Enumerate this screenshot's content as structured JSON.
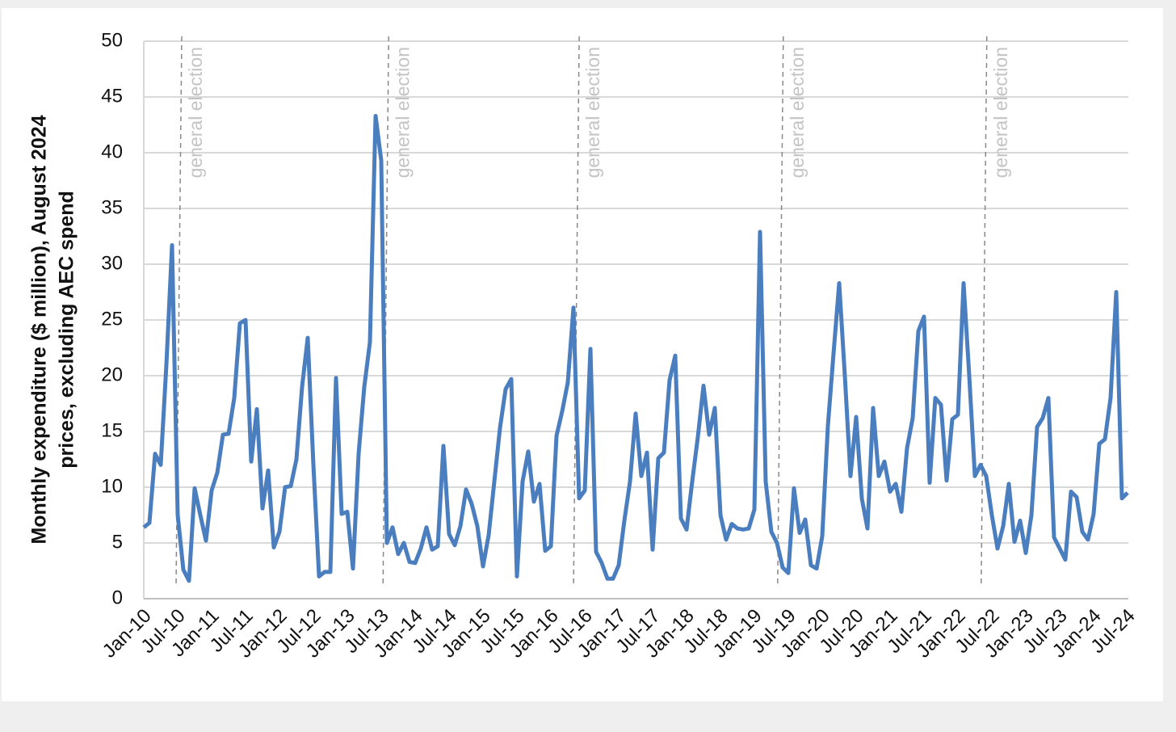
{
  "chart_data": {
    "type": "line",
    "ylabel": [
      "Monthly expenditure ($ million),  August 2024",
      "prices, excluding AEC spend"
    ],
    "categories": [
      "Jan-10",
      null,
      null,
      null,
      null,
      null,
      "Jul-10",
      null,
      null,
      null,
      null,
      null,
      "Jan-11",
      null,
      null,
      null,
      null,
      null,
      "Jul-11",
      null,
      null,
      null,
      null,
      null,
      "Jan-12",
      null,
      null,
      null,
      null,
      null,
      "Jul-12",
      null,
      null,
      null,
      null,
      null,
      "Jan-13",
      null,
      null,
      null,
      null,
      null,
      "Jul-13",
      null,
      null,
      null,
      null,
      null,
      "Jan-14",
      null,
      null,
      null,
      null,
      null,
      "Jul-14",
      null,
      null,
      null,
      null,
      null,
      "Jan-15",
      null,
      null,
      null,
      null,
      null,
      "Jul-15",
      null,
      null,
      null,
      null,
      null,
      "Jan-16",
      null,
      null,
      null,
      null,
      null,
      "Jul-16",
      null,
      null,
      null,
      null,
      null,
      "Jan-17",
      null,
      null,
      null,
      null,
      null,
      "Jul-17",
      null,
      null,
      null,
      null,
      null,
      "Jan-18",
      null,
      null,
      null,
      null,
      null,
      "Jul-18",
      null,
      null,
      null,
      null,
      null,
      "Jan-19",
      null,
      null,
      null,
      null,
      null,
      "Jul-19",
      null,
      null,
      null,
      null,
      null,
      "Jan-20",
      null,
      null,
      null,
      null,
      null,
      "Jul-20",
      null,
      null,
      null,
      null,
      null,
      "Jan-21",
      null,
      null,
      null,
      null,
      null,
      "Jul-21",
      null,
      null,
      null,
      null,
      null,
      "Jan-22",
      null,
      null,
      null,
      null,
      null,
      "Jul-22",
      null,
      null,
      null,
      null,
      null,
      "Jan-23",
      null,
      null,
      null,
      null,
      null,
      "Jul-23",
      null,
      null,
      null,
      null,
      null,
      "Jan-24",
      null,
      null,
      null,
      null,
      null,
      "Jul-24"
    ],
    "values": [
      6.4,
      6.8,
      13,
      12,
      21,
      31.7,
      7.5,
      2.6,
      1.6,
      9.9,
      7.5,
      5.2,
      9.7,
      11.3,
      14.7,
      14.8,
      18,
      24.7,
      25,
      12.3,
      17,
      8.1,
      11.5,
      4.6,
      6,
      10,
      10.1,
      12.5,
      19,
      23.4,
      12,
      2,
      2.4,
      2.4,
      19.8,
      7.6,
      7.8,
      2.7,
      13,
      19,
      23,
      43.3,
      39.3,
      5,
      6.4,
      4,
      5,
      3.3,
      3.2,
      4.5,
      6.4,
      4.4,
      4.7,
      13.7,
      5.8,
      4.8,
      6.5,
      9.8,
      8.5,
      6.5,
      2.9,
      5.7,
      10.5,
      15.3,
      18.8,
      19.7,
      2,
      10.5,
      13.2,
      8.7,
      10.3,
      4.3,
      4.7,
      14.6,
      16.8,
      19.4,
      26.1,
      9,
      9.7,
      22.4,
      4.2,
      3.2,
      1.8,
      1.8,
      3,
      7,
      10.5,
      16.6,
      11,
      13.1,
      4.4,
      12.6,
      13.1,
      19.6,
      21.8,
      7.2,
      6.2,
      10.5,
      14.5,
      19.1,
      14.7,
      17.1,
      7.5,
      5.3,
      6.7,
      6.3,
      6.2,
      6.3,
      8,
      32.9,
      10.5,
      6,
      5,
      2.8,
      2.3,
      9.9,
      5.9,
      7.1,
      3,
      2.7,
      5.6,
      15.5,
      22,
      28.3,
      20,
      11,
      16.3,
      9,
      6.3,
      17.1,
      11,
      12.3,
      9.6,
      10.3,
      7.8,
      13.5,
      16.2,
      24,
      25.3,
      10.4,
      18,
      17.4,
      10.6,
      16.1,
      16.5,
      28.3,
      20,
      11,
      12,
      11,
      7.5,
      4.5,
      6.5,
      10.3,
      5.1,
      7,
      4.1,
      7.5,
      15.4,
      16.2,
      18,
      5.5,
      4.5,
      3.5,
      9.6,
      9.1,
      6,
      5.3,
      7.6,
      13.9,
      14.3,
      18,
      27.5,
      9,
      9.5
    ],
    "color": "#4a7ebf",
    "annotations": [
      {
        "text": "general election",
        "x": 6
      },
      {
        "text": "general election",
        "x": 42.6
      },
      {
        "text": "general election",
        "x": 76.3
      },
      {
        "text": "general election",
        "x": 112.4
      },
      {
        "text": "general election",
        "x": 148.4
      }
    ],
    "ylim": [
      0,
      50
    ],
    "yticks": [
      0,
      5,
      10,
      15,
      20,
      25,
      30,
      35,
      40,
      45,
      50
    ],
    "grid": true
  }
}
